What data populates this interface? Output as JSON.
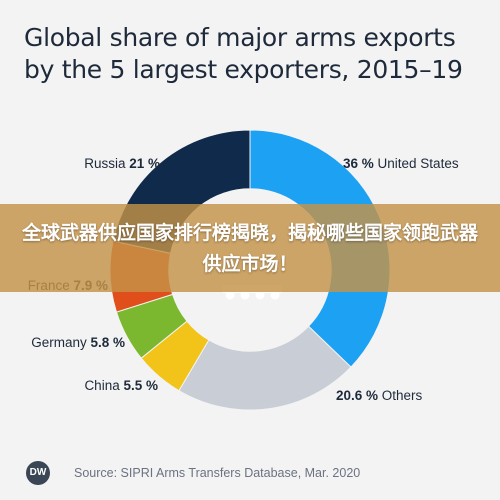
{
  "chart_data": {
    "type": "pie",
    "title": "Global share of major arms exports by the 5 largest exporters, 2015–19",
    "slices": [
      {
        "name": "United States",
        "value": 36,
        "value_label": "36 %",
        "color": "#1da1f2"
      },
      {
        "name": "Others",
        "value": 20.6,
        "value_label": "20.6 %",
        "color": "#c9ced6"
      },
      {
        "name": "China",
        "value": 5.5,
        "value_label": "5.5 %",
        "color": "#f2c318"
      },
      {
        "name": "Germany",
        "value": 5.8,
        "value_label": "5.8 %",
        "color": "#7cb82f"
      },
      {
        "name": "France",
        "value": 7.9,
        "value_label": "7.9 %",
        "color": "#e04e1b"
      },
      {
        "name": "Russia",
        "value": 21,
        "value_label": "21 %",
        "color": "#0f2a4a"
      }
    ],
    "inner_radius_ratio": 0.58
  },
  "banner": {
    "text": "全球武器供应国家排行榜揭晓，揭秘哪些国家领跑武器供应市场！",
    "color": "#c49248"
  },
  "footer": {
    "logo": "DW",
    "source": "Source: SIPRI Arms Transfers Database, Mar. 2020"
  }
}
